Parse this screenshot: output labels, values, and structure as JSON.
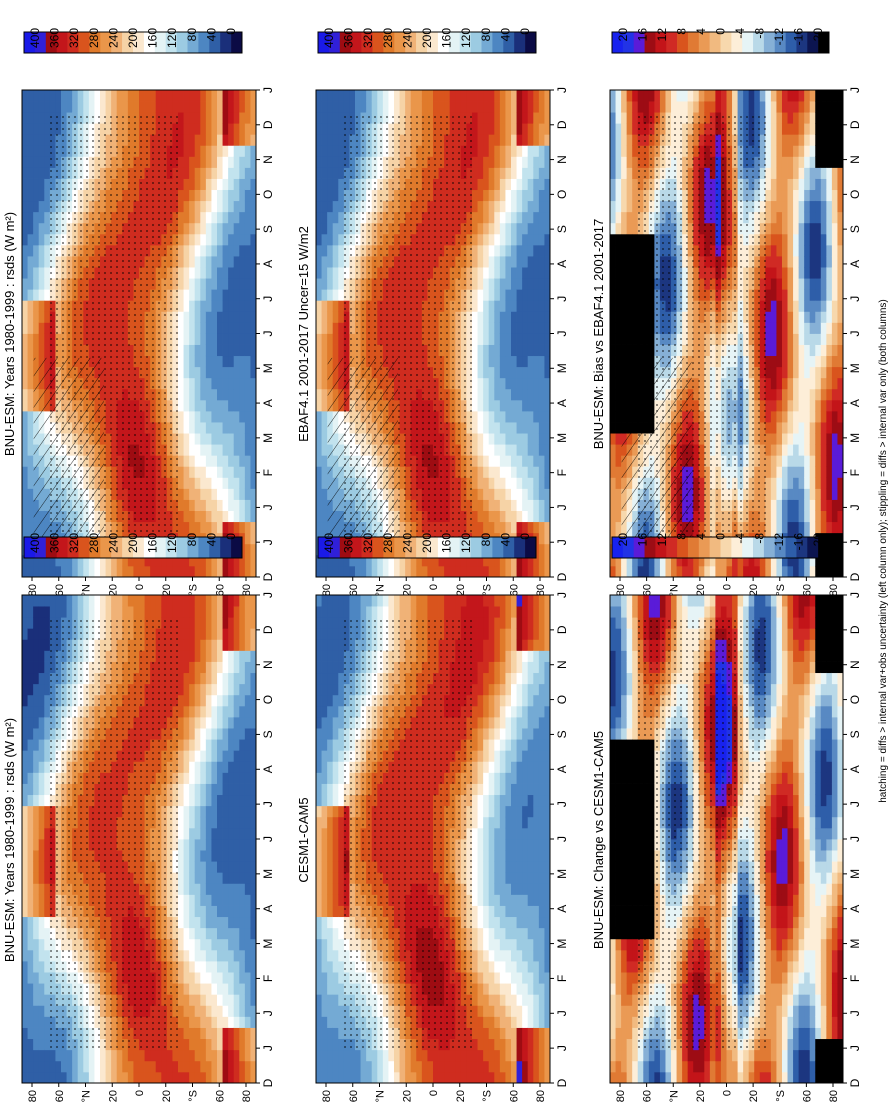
{
  "footer_note": "hatching = diffs > internal var+obs uncertainty (left column only); stippling = diffs > internal var only (both columns)",
  "chart_data": [
    {
      "type": "heatmap",
      "title": "BNU-ESM: Years 1980-1999 : rsds (W m²)",
      "x_ticks": [
        "D",
        "J",
        "J",
        "F",
        "M",
        "A",
        "M",
        "J",
        "J",
        "A",
        "S",
        "O",
        "N",
        "D",
        "J"
      ],
      "y_ticks": [
        "80",
        "60",
        "°N",
        "20",
        "0",
        "20",
        "°S",
        "60",
        "80"
      ],
      "colorbar_ticks": [
        "400",
        "360",
        "320",
        "280",
        "240",
        "200",
        "160",
        "120",
        "80",
        "40",
        "0"
      ],
      "levels": [
        0,
        20,
        40,
        60,
        80,
        100,
        120,
        140,
        160,
        180,
        200,
        220,
        240,
        260,
        280,
        300,
        320,
        340,
        360,
        380,
        400
      ],
      "variable": "rsds",
      "hatching": true,
      "stippling": true
    },
    {
      "type": "heatmap",
      "title": "BNU-ESM: Years 1980-1999 : rsds (W m²)",
      "x_ticks": [
        "D",
        "J",
        "J",
        "F",
        "M",
        "A",
        "M",
        "J",
        "J",
        "A",
        "S",
        "O",
        "N",
        "D",
        "J"
      ],
      "y_ticks": [
        "80",
        "60",
        "°N",
        "20",
        "0",
        "20",
        "°S",
        "60",
        "80"
      ],
      "colorbar_ticks": [
        "400",
        "360",
        "320",
        "280",
        "240",
        "200",
        "160",
        "120",
        "80",
        "40",
        "0"
      ],
      "levels": [
        0,
        20,
        40,
        60,
        80,
        100,
        120,
        140,
        160,
        180,
        200,
        220,
        240,
        260,
        280,
        300,
        320,
        340,
        360,
        380,
        400
      ],
      "variable": "rsds",
      "hatching": false,
      "stippling": true
    },
    {
      "type": "heatmap",
      "title": "EBAF4.1 2001-2017 Uncer=15 W/m2",
      "x_ticks": [
        "D",
        "J",
        "J",
        "F",
        "M",
        "A",
        "M",
        "J",
        "J",
        "A",
        "S",
        "O",
        "N",
        "D",
        "J"
      ],
      "y_ticks": [
        "80",
        "60",
        "°N",
        "20",
        "0",
        "20",
        "°S",
        "60",
        "80"
      ],
      "colorbar_ticks": [
        "400",
        "360",
        "320",
        "280",
        "240",
        "200",
        "160",
        "120",
        "80",
        "40",
        "0"
      ],
      "levels": [
        0,
        20,
        40,
        60,
        80,
        100,
        120,
        140,
        160,
        180,
        200,
        220,
        240,
        260,
        280,
        300,
        320,
        340,
        360,
        380,
        400
      ],
      "variable": "rsds",
      "hatching": true,
      "stippling": true
    },
    {
      "type": "heatmap",
      "title": "CESM1-CAM5",
      "x_ticks": [
        "D",
        "J",
        "J",
        "F",
        "M",
        "A",
        "M",
        "J",
        "J",
        "A",
        "S",
        "O",
        "N",
        "D",
        "J"
      ],
      "y_ticks": [
        "80",
        "60",
        "°N",
        "20",
        "0",
        "20",
        "°S",
        "60",
        "80"
      ],
      "colorbar_ticks": [
        "400",
        "360",
        "320",
        "280",
        "240",
        "200",
        "160",
        "120",
        "80",
        "40",
        "0"
      ],
      "levels": [
        0,
        20,
        40,
        60,
        80,
        100,
        120,
        140,
        160,
        180,
        200,
        220,
        240,
        260,
        280,
        300,
        320,
        340,
        360,
        380,
        400
      ],
      "variable": "rsds",
      "hatching": false,
      "stippling": true
    },
    {
      "type": "heatmap",
      "title": "BNU-ESM: Bias vs EBAF4.1 2001-2017",
      "x_ticks": [
        "D",
        "J",
        "J",
        "F",
        "M",
        "A",
        "M",
        "J",
        "J",
        "A",
        "S",
        "O",
        "N",
        "D",
        "J"
      ],
      "y_ticks": [
        "80",
        "60",
        "°N",
        "20",
        "0",
        "20",
        "°S",
        "60",
        "80"
      ],
      "colorbar_ticks": [
        "20",
        "16",
        "12",
        "8",
        "4",
        "0",
        "-4",
        "-8",
        "-12",
        "-16",
        "-20"
      ],
      "levels": [
        -20,
        -18,
        -16,
        -14,
        -12,
        -10,
        -8,
        -6,
        -4,
        -2,
        0,
        2,
        4,
        6,
        8,
        10,
        12,
        14,
        16,
        18,
        20
      ],
      "hatching": true,
      "stippling": true
    },
    {
      "type": "heatmap",
      "title": "BNU-ESM: Change vs CESM1-CAM5",
      "x_ticks": [
        "D",
        "J",
        "J",
        "F",
        "M",
        "A",
        "M",
        "J",
        "J",
        "A",
        "S",
        "O",
        "N",
        "D",
        "J"
      ],
      "y_ticks": [
        "80",
        "60",
        "°N",
        "20",
        "0",
        "20",
        "°S",
        "60",
        "80"
      ],
      "colorbar_ticks": [
        "20",
        "16",
        "12",
        "8",
        "4",
        "0",
        "-4",
        "-8",
        "-12",
        "-16",
        "-20"
      ],
      "levels": [
        -20,
        -18,
        -16,
        -14,
        -12,
        -10,
        -8,
        -6,
        -4,
        -2,
        0,
        2,
        4,
        6,
        8,
        10,
        12,
        14,
        16,
        18,
        20
      ],
      "hatching": false,
      "stippling": true
    }
  ]
}
